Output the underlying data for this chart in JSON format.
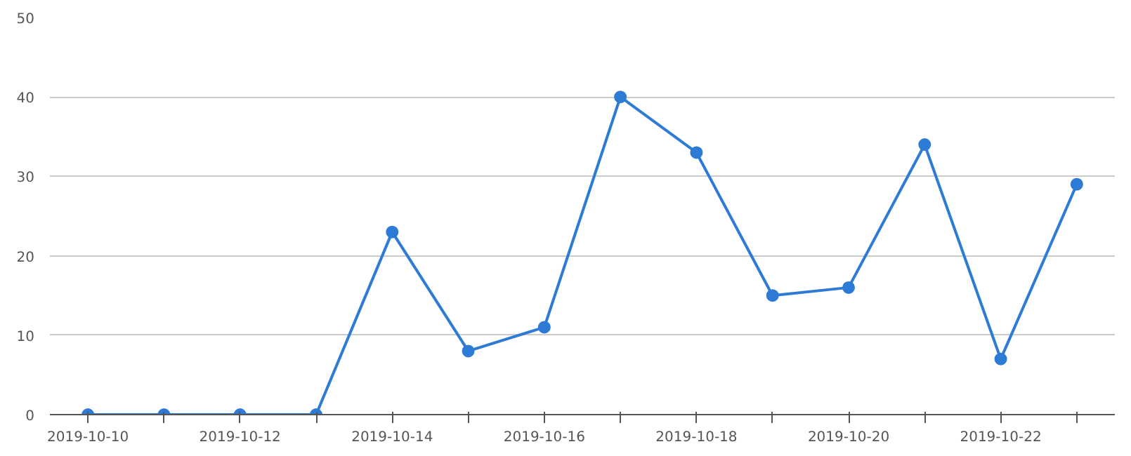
{
  "chart_data": {
    "type": "line",
    "categories": [
      "2019-10-10",
      null,
      "2019-10-12",
      null,
      "2019-10-14",
      null,
      "2019-10-16",
      null,
      "2019-10-18",
      null,
      "2019-10-20",
      null,
      "2019-10-22",
      null
    ],
    "series": [
      {
        "color": "#2e7bd6",
        "values": [
          0,
          0,
          0,
          0,
          23,
          8,
          11,
          40,
          33,
          15,
          16,
          34,
          7,
          29
        ]
      }
    ],
    "ylim": [
      0,
      50
    ],
    "yticks": [
      0,
      10,
      20,
      30,
      40,
      50
    ],
    "grid": "y",
    "marker": "circle",
    "line_style": "solid"
  }
}
